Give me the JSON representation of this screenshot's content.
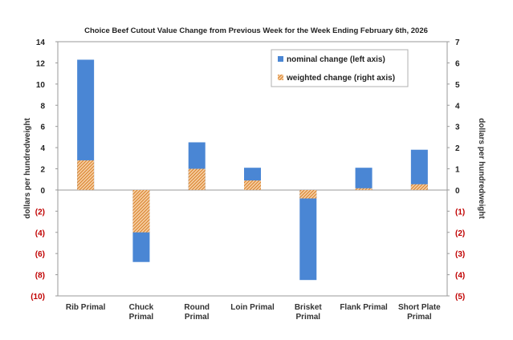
{
  "chart_data": {
    "type": "bar",
    "title": "Choice Beef Cutout Value Change from Previous Week for the Week Ending February 6th, 2026",
    "categories": [
      [
        "Rib Primal"
      ],
      [
        "Chuck",
        "Primal"
      ],
      [
        "Round",
        "Primal"
      ],
      [
        "Loin Primal"
      ],
      [
        "Brisket",
        "Primal"
      ],
      [
        "Flank Primal"
      ],
      [
        "Short Plate",
        "Primal"
      ]
    ],
    "series": [
      {
        "name": "nominal change (left axis)",
        "axis": "left",
        "color": "#4a86d4",
        "values": [
          12.3,
          -6.8,
          4.5,
          2.1,
          -8.5,
          2.1,
          3.8
        ]
      },
      {
        "name": "weighted change (right axis)",
        "axis": "right",
        "color": "#e8a060",
        "pattern": "hatched",
        "values": [
          1.4,
          -2.0,
          1.0,
          0.45,
          -0.4,
          0.08,
          0.27
        ]
      }
    ],
    "ylabel_left": "dollars per hundredweight",
    "ylabel_right": "dollars per hundredweight",
    "ylim_left": [
      -10,
      14
    ],
    "ylim_right": [
      -5,
      7
    ],
    "yticks_left": [
      "14",
      "12",
      "10",
      "8",
      "6",
      "4",
      "2",
      "0",
      "(2)",
      "(4)",
      "(6)",
      "(8)",
      "(10)"
    ],
    "yticks_right": [
      "7",
      "6",
      "5",
      "4",
      "3",
      "2",
      "1",
      "0",
      "(1)",
      "(2)",
      "(3)",
      "(4)",
      "(5)"
    ],
    "grid": false,
    "legend_position": "top-right",
    "negative_tick_color": "#c00000"
  }
}
